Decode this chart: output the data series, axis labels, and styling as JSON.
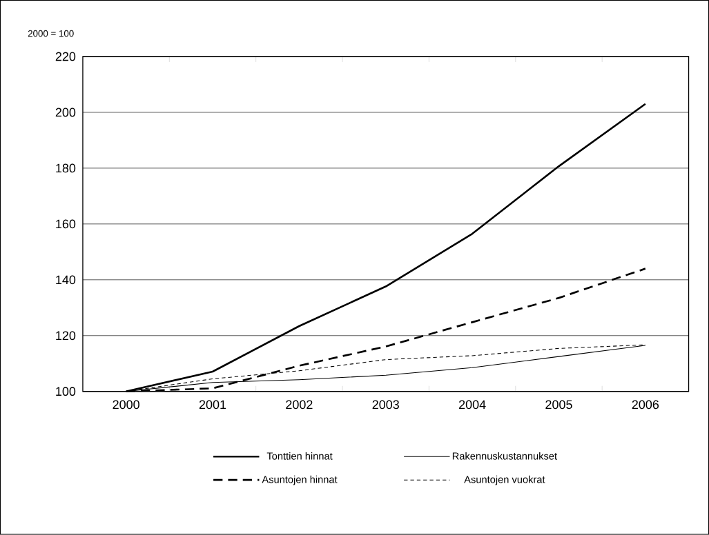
{
  "chart_data": {
    "type": "line",
    "ylabel": "2000 = 100",
    "categories": [
      "2000",
      "2001",
      "2002",
      "2003",
      "2004",
      "2005",
      "2006"
    ],
    "series": [
      {
        "name": "Tonttien hinnat",
        "color": "#000000",
        "line_style": "solid",
        "values": [
          100,
          107.1,
          123.4,
          137.6,
          156.5,
          180.7,
          203
        ]
      },
      {
        "name": "Rakennuskustannukset",
        "color": "#000000",
        "line_style": "solid",
        "values": [
          100,
          103.2,
          104.2,
          105.8,
          108.5,
          112.5,
          116.5
        ]
      },
      {
        "name": "Asuntojen hinnat",
        "color": "#000000",
        "line_style": "dashed",
        "values": [
          100,
          101.1,
          109.2,
          116.1,
          124.8,
          133.5,
          144
        ]
      },
      {
        "name": "Asuntojen vuokrat",
        "color": "#000000",
        "line_style": "dashed",
        "values": [
          100,
          104.5,
          107.4,
          111.4,
          112.8,
          115.4,
          116.7
        ]
      }
    ],
    "ylim": [
      100,
      220
    ],
    "yticks": [
      100,
      120,
      140,
      160,
      180,
      200,
      220
    ],
    "grid": "y",
    "legend": "bottom",
    "marker": "none"
  }
}
